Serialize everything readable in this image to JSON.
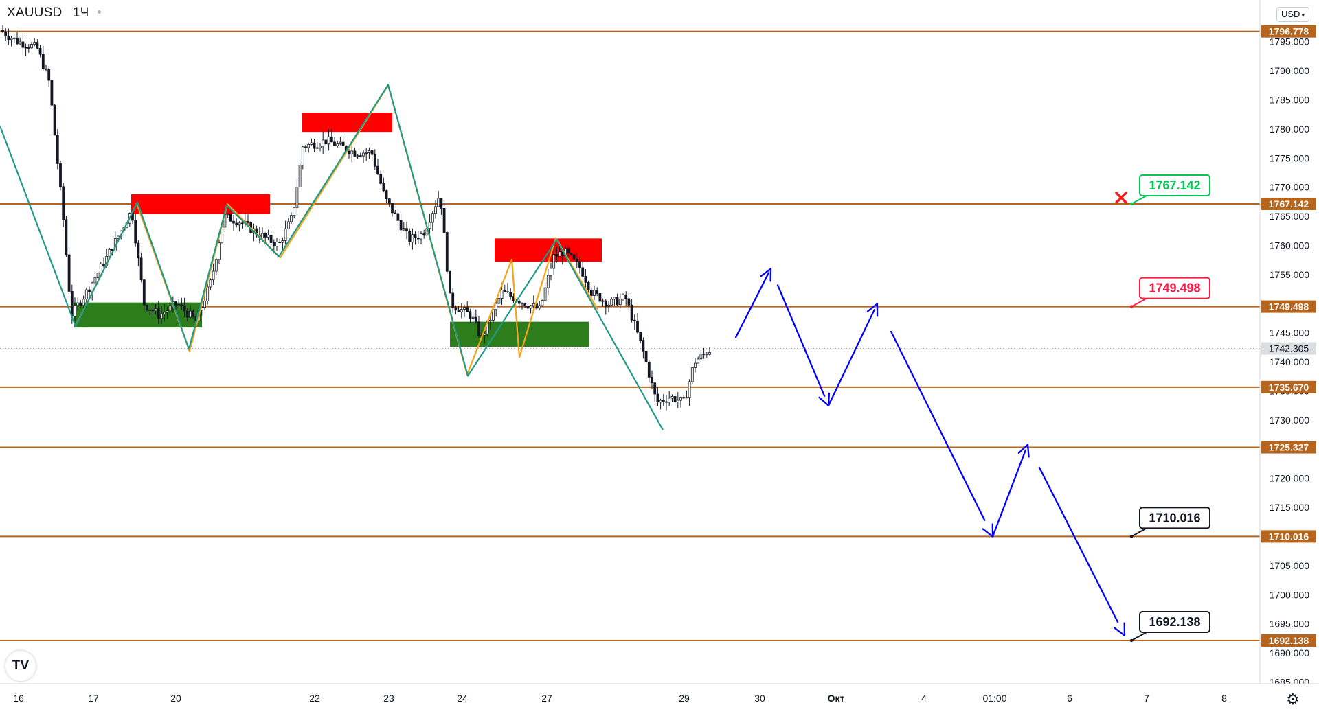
{
  "header": {
    "symbol": "XAUUSD",
    "interval": "1Ч",
    "currency": "USD"
  },
  "logo_text": "TV",
  "icons": {
    "settings": "gear-icon",
    "currency_menu": "chevron-down-icon",
    "invalidation": "x-mark-icon"
  },
  "colors": {
    "level_line": "#b5651d",
    "supply_zone": "#ff0000",
    "demand_zone": "#2e7d1c",
    "orange_path": "#f7a21b",
    "teal_path": "#1f9a8a",
    "forecast": "#0000ff",
    "candle": "#131722",
    "green_tag": "#00c853",
    "red_tag": "#ff1744"
  },
  "chart_data": {
    "type": "candlestick",
    "symbol": "XAUUSD",
    "interval": "1Ч",
    "ylim": [
      1684.5,
      1801
    ],
    "y_ticks": [
      1685,
      1690,
      1695,
      1700,
      1705,
      1710,
      1715,
      1720,
      1725,
      1730,
      1735,
      1740,
      1745,
      1750,
      1755,
      1760,
      1765,
      1770,
      1775,
      1780,
      1785,
      1790,
      1795
    ],
    "y_tick_labels": [
      "1685.000",
      "1690.000",
      "1695.000",
      "1700.000",
      "1705.000",
      "1710.000",
      "1715.000",
      "1720.000",
      "1725.000",
      "1730.000",
      "1735.000",
      "1740.000",
      "1745.000",
      "1750.000",
      "1755.000",
      "1760.000",
      "1765.000",
      "1770.000",
      "1775.000",
      "1780.000",
      "1785.000",
      "1790.000",
      "1795.000"
    ],
    "x_tick_labels": [
      "16",
      "17",
      "20",
      "22",
      "23",
      "24",
      "27",
      "29",
      "30",
      "Окт",
      "4",
      "01:00",
      "6",
      "7",
      "8"
    ],
    "horizontal_levels": [
      {
        "price": 1796.778,
        "label": "1796.778"
      },
      {
        "price": 1767.142,
        "label": "1767.142"
      },
      {
        "price": 1749.498,
        "label": "1749.498"
      },
      {
        "price": 1735.67,
        "label": "1735.670"
      },
      {
        "price": 1725.327,
        "label": "1725.327"
      },
      {
        "price": 1710.016,
        "label": "1710.016"
      },
      {
        "price": 1692.138,
        "label": "1692.138"
      }
    ],
    "current_price": {
      "price": 1742.305,
      "label": "1742.305"
    },
    "callouts": [
      {
        "label": "1767.142",
        "price": 1767.142,
        "style": "green"
      },
      {
        "label": "1749.498",
        "price": 1749.498,
        "style": "red"
      },
      {
        "label": "1710.016",
        "price": 1710.016,
        "style": "black"
      },
      {
        "label": "1692.138",
        "price": 1692.138,
        "style": "black"
      }
    ],
    "supply_zones": [
      {
        "from": "Sep 17 afternoon",
        "to": "Sep 21 late",
        "low": 1765.4,
        "high": 1768.8
      },
      {
        "from": "Sep 22 early",
        "to": "Sep 23 early",
        "low": 1779.5,
        "high": 1782.8
      },
      {
        "from": "Sep 24 late",
        "to": "Sep 27 late",
        "low": 1757.2,
        "high": 1761.2
      }
    ],
    "demand_zones": [
      {
        "from": "Sep 16 late",
        "to": "Sep 20 late",
        "low": 1745.9,
        "high": 1750.2
      },
      {
        "from": "Sep 23 late",
        "to": "Sep 27 late",
        "low": 1742.6,
        "high": 1746.9
      }
    ],
    "orange_path": [
      1746.2,
      1767.2,
      1741.8,
      1767.1,
      1757.9,
      1787.5,
      1737.8,
      1757.6,
      1740.8,
      1761.3,
      1749.0
    ],
    "teal_path": [
      1780.5,
      1746.1,
      1767.4,
      1742.2,
      1766.9,
      1758.1,
      1787.6,
      1737.6,
      1761.0,
      1728.3
    ],
    "forecast_path": [
      1744.2,
      1756.0,
      1732.5,
      1750.0,
      1710.0,
      1725.8,
      1693.0
    ],
    "candles_summary": {
      "open": 1797.0,
      "high": 1798.5,
      "low": 1728.5,
      "last": 1742.305
    }
  }
}
